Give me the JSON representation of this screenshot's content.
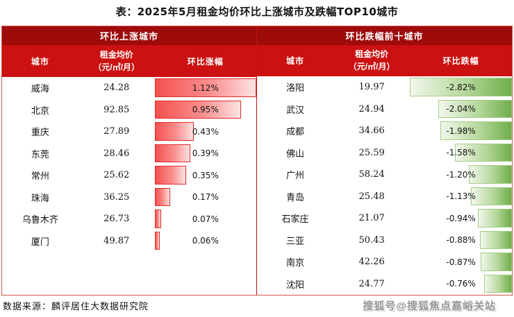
{
  "title": "表：2025年5月租金均价环比上涨城市及跌幅TOP10城市",
  "source": "数据来源：麟评居住大数据研究院",
  "watermark": "搜狐号@搜狐焦点嘉峪关站",
  "colors": {
    "group_header_bg": "#9e0b0b",
    "column_header_bg": "#cb1111",
    "table_border": "#d0554a",
    "bar_up_start": "#f4514f",
    "bar_up_end": "#fde2e2",
    "bar_up_border": "#e12a2a",
    "bar_down_start": "#f2f7ed",
    "bar_down_end": "#6fae4b",
    "bar_down_border": "#a5cd85"
  },
  "left_table": {
    "group_title": "环比上涨城市",
    "columns": {
      "city": "城市",
      "price_line1": "租金均价",
      "price_line2": "（元/㎡/月）",
      "change": "环比涨幅"
    },
    "bar_style": "up",
    "max_abs_value": 1.12,
    "rows": [
      {
        "city": "威海",
        "price": "24.28",
        "change": "1.12%",
        "value": 1.12
      },
      {
        "city": "北京",
        "price": "92.85",
        "change": "0.95%",
        "value": 0.95
      },
      {
        "city": "重庆",
        "price": "27.89",
        "change": "0.43%",
        "value": 0.43
      },
      {
        "city": "东莞",
        "price": "28.46",
        "change": "0.39%",
        "value": 0.39
      },
      {
        "city": "常州",
        "price": "25.62",
        "change": "0.35%",
        "value": 0.35
      },
      {
        "city": "珠海",
        "price": "36.25",
        "change": "0.17%",
        "value": 0.17
      },
      {
        "city": "乌鲁木齐",
        "price": "26.73",
        "change": "0.07%",
        "value": 0.07
      },
      {
        "city": "厦门",
        "price": "49.87",
        "change": "0.06%",
        "value": 0.06
      }
    ]
  },
  "right_table": {
    "group_title": "环比跌幅前十城市",
    "columns": {
      "city": "城市",
      "price_line1": "租金均价",
      "price_line2": "（元/㎡/月）",
      "change": "环比跌幅"
    },
    "bar_style": "down",
    "max_abs_value": 2.82,
    "rows": [
      {
        "city": "洛阳",
        "price": "19.97",
        "change": "-2.82%",
        "value": -2.82
      },
      {
        "city": "武汉",
        "price": "24.94",
        "change": "-2.04%",
        "value": -2.04
      },
      {
        "city": "成都",
        "price": "34.66",
        "change": "-1.98%",
        "value": -1.98
      },
      {
        "city": "佛山",
        "price": "25.59",
        "change": "-1.58%",
        "value": -1.58
      },
      {
        "city": "广州",
        "price": "58.24",
        "change": "-1.20%",
        "value": -1.2
      },
      {
        "city": "青岛",
        "price": "25.48",
        "change": "-1.13%",
        "value": -1.13
      },
      {
        "city": "石家庄",
        "price": "21.07",
        "change": "-0.94%",
        "value": -0.94
      },
      {
        "city": "三亚",
        "price": "50.43",
        "change": "-0.88%",
        "value": -0.88
      },
      {
        "city": "南京",
        "price": "42.26",
        "change": "-0.87%",
        "value": -0.87
      },
      {
        "city": "沈阳",
        "price": "24.77",
        "change": "-0.76%",
        "value": -0.76
      }
    ]
  },
  "chart_data": [
    {
      "type": "bar",
      "orientation": "horizontal",
      "title": "环比上涨城市",
      "categories": [
        "威海",
        "北京",
        "重庆",
        "东莞",
        "常州",
        "珠海",
        "乌鲁木齐",
        "厦门"
      ],
      "series": [
        {
          "name": "租金均价（元/㎡/月）",
          "values": [
            24.28,
            92.85,
            27.89,
            28.46,
            25.62,
            36.25,
            26.73,
            49.87
          ]
        },
        {
          "name": "环比涨幅(%)",
          "values": [
            1.12,
            0.95,
            0.43,
            0.39,
            0.35,
            0.17,
            0.07,
            0.06
          ]
        }
      ],
      "xlim": [
        0,
        1.12
      ],
      "legend_position": "none",
      "grid": false
    },
    {
      "type": "bar",
      "orientation": "horizontal",
      "title": "环比跌幅前十城市",
      "categories": [
        "洛阳",
        "武汉",
        "成都",
        "佛山",
        "广州",
        "青岛",
        "石家庄",
        "三亚",
        "南京",
        "沈阳"
      ],
      "series": [
        {
          "name": "租金均价（元/㎡/月）",
          "values": [
            19.97,
            24.94,
            34.66,
            25.59,
            58.24,
            25.48,
            21.07,
            50.43,
            42.26,
            24.77
          ]
        },
        {
          "name": "环比跌幅(%)",
          "values": [
            -2.82,
            -2.04,
            -1.98,
            -1.58,
            -1.2,
            -1.13,
            -0.94,
            -0.88,
            -0.87,
            -0.76
          ]
        }
      ],
      "xlim": [
        -2.82,
        0
      ],
      "legend_position": "none",
      "grid": false
    }
  ]
}
